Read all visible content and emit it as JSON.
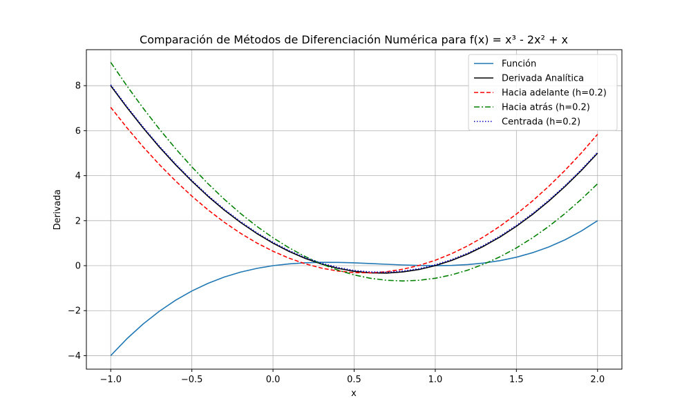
{
  "chart_data": {
    "type": "line",
    "title": "Comparación de Métodos de Diferenciación Numérica para f(x) = x³ - 2x² + x",
    "xlabel": "x",
    "ylabel": "Derivada",
    "xlim": [
      -1.15,
      2.15
    ],
    "ylim": [
      -4.6,
      9.6
    ],
    "xticks": [
      -1.0,
      -0.5,
      0.0,
      0.5,
      1.0,
      1.5,
      2.0
    ],
    "xtick_labels": [
      "−1.0",
      "−0.5",
      "0.0",
      "0.5",
      "1.0",
      "1.5",
      "2.0"
    ],
    "yticks": [
      -4,
      -2,
      0,
      2,
      4,
      6,
      8
    ],
    "ytick_labels": [
      "−4",
      "−2",
      "0",
      "2",
      "4",
      "6",
      "8"
    ],
    "grid": true,
    "legend_position": "top-right",
    "x": [
      -1.0,
      -0.9,
      -0.8,
      -0.7,
      -0.6,
      -0.5,
      -0.4,
      -0.3,
      -0.2,
      -0.1,
      0.0,
      0.1,
      0.2,
      0.3,
      0.4,
      0.5,
      0.6,
      0.7,
      0.8,
      0.9,
      1.0,
      1.1,
      1.2,
      1.3,
      1.4,
      1.5,
      1.6,
      1.7,
      1.8,
      1.9,
      2.0
    ],
    "series": [
      {
        "name": "Función",
        "color": "#1f77b4",
        "dash": "solid",
        "values": [
          -4.0,
          -3.249,
          -2.592,
          -2.023,
          -1.536,
          -1.125,
          -0.784,
          -0.507,
          -0.288,
          -0.121,
          0.0,
          0.081,
          0.128,
          0.147,
          0.144,
          0.125,
          0.096,
          0.063,
          0.032,
          0.009,
          0.0,
          0.011,
          0.048,
          0.117,
          0.224,
          0.375,
          0.576,
          0.833,
          1.152,
          1.539,
          2.0
        ]
      },
      {
        "name": "Derivada Analítica",
        "color": "#000000",
        "dash": "solid",
        "values": [
          8.0,
          7.03,
          6.12,
          5.27,
          4.48,
          3.75,
          3.08,
          2.47,
          1.92,
          1.43,
          1.0,
          0.63,
          0.32,
          0.07,
          -0.12,
          -0.25,
          -0.32,
          -0.33,
          -0.28,
          -0.17,
          0.0,
          0.23,
          0.52,
          0.87,
          1.28,
          1.75,
          2.28,
          2.87,
          3.52,
          4.23,
          5.0
        ]
      },
      {
        "name": "Hacia adelante (h=0.2)",
        "color": "#ff0000",
        "dash": "dashed",
        "values": [
          7.04,
          6.13,
          5.28,
          4.49,
          3.76,
          3.09,
          2.48,
          1.93,
          1.44,
          1.01,
          0.64,
          0.33,
          0.08,
          -0.11,
          -0.24,
          -0.31,
          -0.32,
          -0.27,
          -0.16,
          0.01,
          0.24,
          0.53,
          0.88,
          1.29,
          1.76,
          2.29,
          2.88,
          3.53,
          4.24,
          5.01,
          5.84
        ]
      },
      {
        "name": "Hacia atrás (h=0.2)",
        "color": "#008000",
        "dash": "dashdot",
        "values": [
          9.04,
          7.99,
          7.0,
          6.07,
          5.2,
          4.39,
          3.64,
          2.95,
          2.32,
          1.75,
          1.24,
          0.79,
          0.4,
          0.07,
          -0.2,
          -0.41,
          -0.56,
          -0.65,
          -0.68,
          -0.65,
          -0.56,
          -0.41,
          -0.2,
          0.07,
          0.4,
          0.79,
          1.24,
          1.75,
          2.32,
          2.95,
          3.64
        ]
      },
      {
        "name": "Centrada (h=0.2)",
        "color": "#0000cc",
        "dash": "dotted",
        "values": [
          8.04,
          7.07,
          6.16,
          5.31,
          4.52,
          3.79,
          3.12,
          2.51,
          1.96,
          1.47,
          1.04,
          0.67,
          0.36,
          0.11,
          -0.08,
          -0.21,
          -0.28,
          -0.29,
          -0.24,
          -0.13,
          0.04,
          0.27,
          0.56,
          0.91,
          1.32,
          1.79,
          2.32,
          2.91,
          3.56,
          4.27,
          5.04
        ]
      }
    ]
  }
}
